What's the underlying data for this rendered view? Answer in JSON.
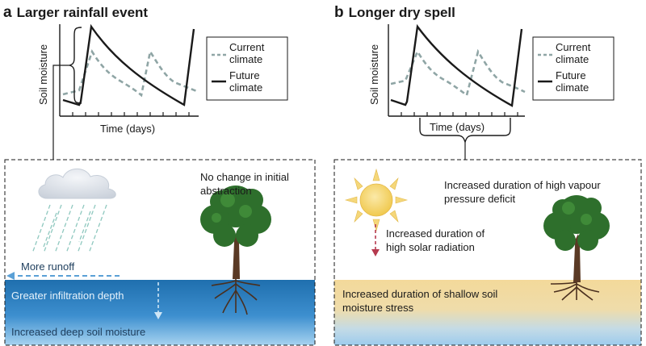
{
  "panel_a": {
    "letter": "a",
    "title": "Larger rainfall event",
    "y_axis": "Soil moisture",
    "x_axis": "Time (days)",
    "legend": {
      "current": "Current climate",
      "future": "Future climate"
    },
    "tree_note": "No change in initial abstraction",
    "runoff": "More runoff",
    "infiltration": "Greater infiltration depth",
    "deep_moisture": "Increased deep soil moisture"
  },
  "panel_b": {
    "letter": "b",
    "title": "Longer dry spell",
    "y_axis": "Soil moisture",
    "x_axis": "Time (days)",
    "legend": {
      "current": "Current climate",
      "future": "Future climate"
    },
    "vpd_note": "Increased duration of high vapour pressure deficit",
    "solar_note": "Increased duration of high solar radiation",
    "stress_note": "Increased duration of shallow soil moisture stress"
  },
  "colors": {
    "current_line": "#8fa5a5",
    "future_line": "#1a1a1a",
    "soil_blue_dark": "#1f6fae",
    "soil_blue_light": "#9ccbed",
    "dry_soil": "#f3d99a",
    "cloud": "#dde3ea",
    "rain": "#8fc8bf",
    "sun": "#f5d77a",
    "runoff_arrow": "#5aa0d6",
    "solar_arrow": "#b53a4f",
    "foliage": "#2e6f2c",
    "trunk": "#5a3a25"
  },
  "icons": [
    "cloud-icon",
    "rain-icon",
    "sun-icon",
    "tree-icon"
  ]
}
